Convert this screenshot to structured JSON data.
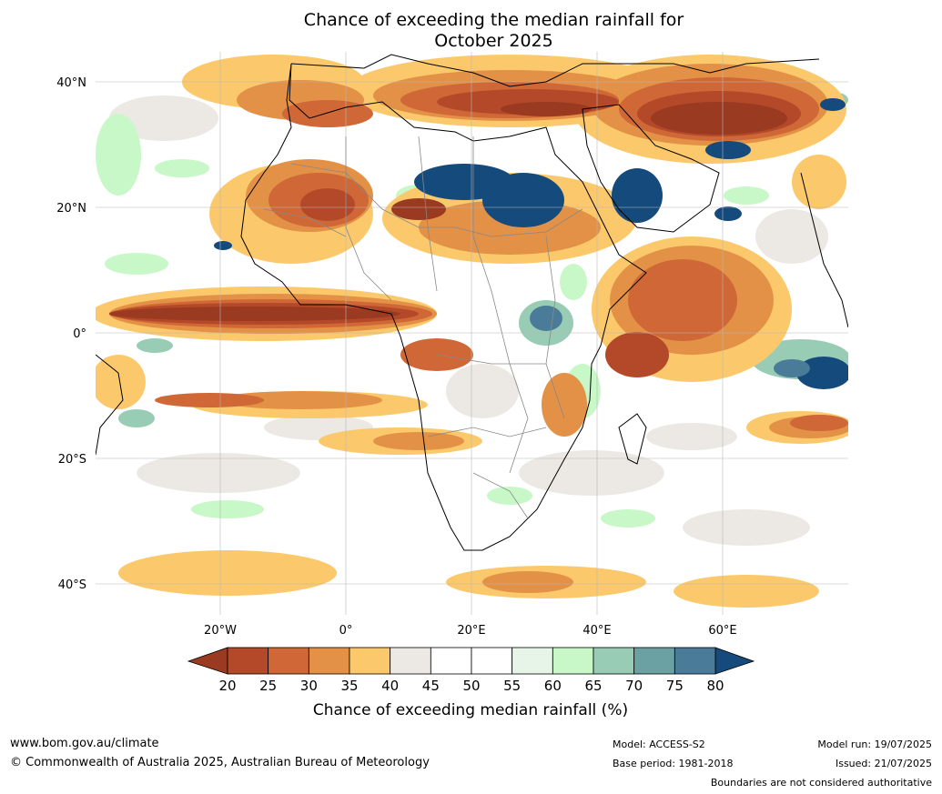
{
  "title_line1": "Chance of exceeding the median rainfall for",
  "title_line2": "October 2025",
  "axes": {
    "lat_ticks": [
      "40°N",
      "20°N",
      "0°",
      "20°S",
      "40°S"
    ],
    "lon_ticks": [
      "20°W",
      "0°",
      "20°E",
      "40°E",
      "60°E"
    ]
  },
  "colorbar": {
    "tick_labels": [
      "20",
      "25",
      "30",
      "35",
      "40",
      "45",
      "50",
      "55",
      "60",
      "65",
      "70",
      "75",
      "80"
    ],
    "colors": [
      "#9a3a20",
      "#b4492a",
      "#cf6836",
      "#e39146",
      "#fbc96b",
      "#ece9e4",
      "#ffffff",
      "#ffffff",
      "#e6f5e8",
      "#c8f8c8",
      "#98ccb5",
      "#6ba1a3",
      "#4a7c9a",
      "#154a7c"
    ],
    "under_color": "#9a3a20",
    "over_color": "#154a7c",
    "label": "Chance of exceeding median rainfall (%)"
  },
  "footer": {
    "website": "www.bom.gov.au/climate",
    "copyright": "© Commonwealth of Australia 2025, Australian Bureau of Meteorology",
    "model": "Model: ACCESS-S2",
    "base_period": "Base period: 1981-2018",
    "model_run": "Model run: 19/07/2025",
    "issued": "Issued: 21/07/2025",
    "disclaimer": "Boundaries are not considered authoritative"
  }
}
